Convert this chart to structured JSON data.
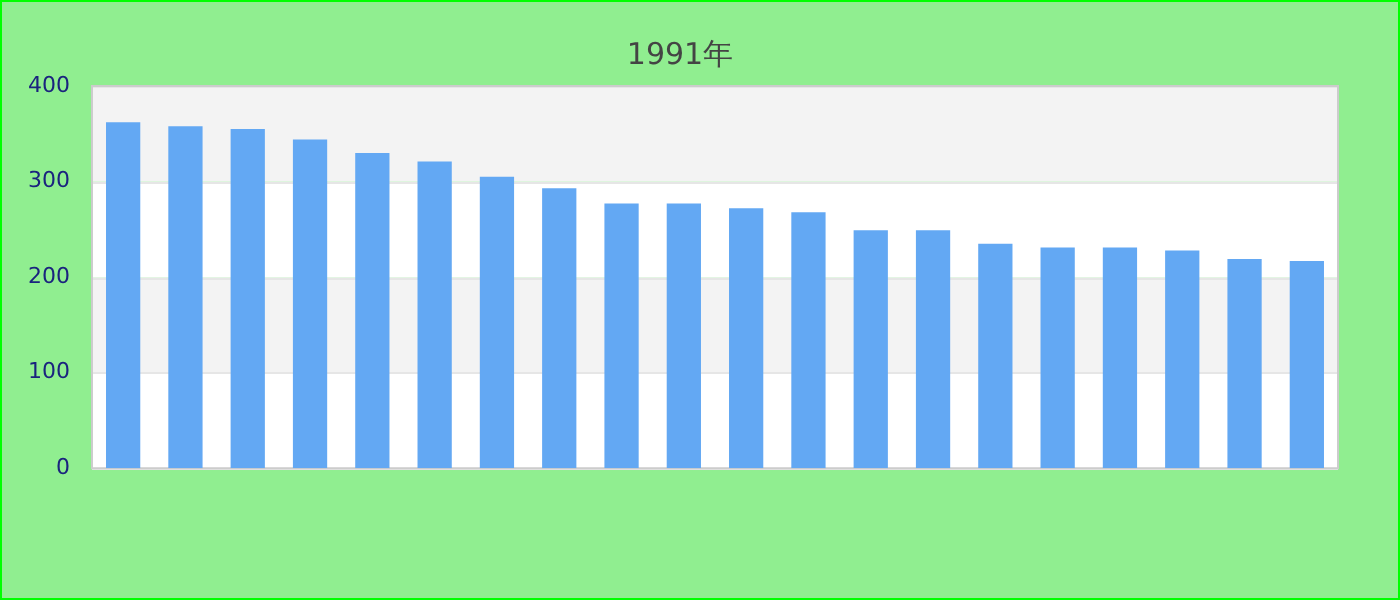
{
  "chart_data": {
    "type": "bar",
    "title": "1991年",
    "categories": [
      null,
      null,
      null,
      null,
      null,
      null,
      null,
      null,
      null,
      null,
      null,
      null,
      null,
      null,
      null,
      null,
      null,
      null,
      null,
      null
    ],
    "values": [
      362,
      358,
      355,
      344,
      330,
      321,
      305,
      293,
      277,
      277,
      272,
      268,
      249,
      249,
      235,
      231,
      231,
      228,
      219,
      217
    ],
    "color": "#63a8f3",
    "ylim": [
      0,
      400
    ],
    "yticks": [
      0,
      100,
      200,
      300,
      400
    ],
    "grid": "y",
    "legend": false
  }
}
